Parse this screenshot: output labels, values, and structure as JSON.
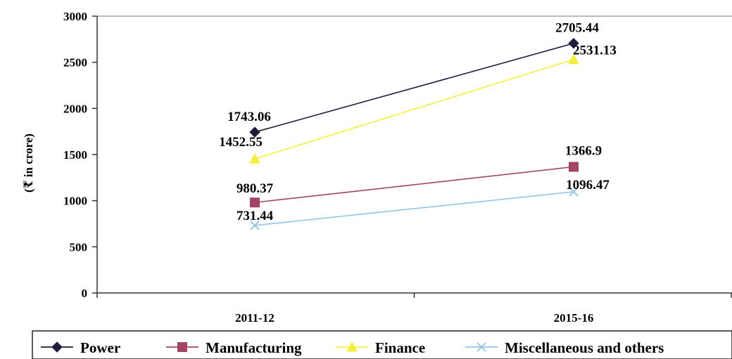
{
  "chart_data": {
    "type": "line",
    "title": "",
    "xlabel": "",
    "ylabel": "(₹ in crore)",
    "categories": [
      "2011-12",
      "2015-16"
    ],
    "ylim": [
      0,
      3000
    ],
    "yticks": [
      0,
      500,
      1000,
      1500,
      2000,
      2500,
      3000
    ],
    "grid": false,
    "legend_position": "bottom",
    "series": [
      {
        "name": "Power",
        "values": [
          1743.06,
          2705.44
        ],
        "labels": [
          "1743.06",
          "2705.44"
        ],
        "color": "#1f1b3d",
        "marker": "diamond"
      },
      {
        "name": "Manufacturing",
        "values": [
          980.37,
          1366.9
        ],
        "labels": [
          "980.37",
          "1366.9"
        ],
        "color": "#a34566",
        "marker": "square"
      },
      {
        "name": "Finance",
        "values": [
          1452.55,
          2531.13
        ],
        "labels": [
          "1452.55",
          "2531.13"
        ],
        "color": "#f5ef3a",
        "marker": "triangle"
      },
      {
        "name": "Miscellaneous and others",
        "values": [
          731.44,
          1096.47
        ],
        "labels": [
          "731.44",
          "1096.47"
        ],
        "color": "#8ec5e6",
        "marker": "x"
      }
    ]
  }
}
